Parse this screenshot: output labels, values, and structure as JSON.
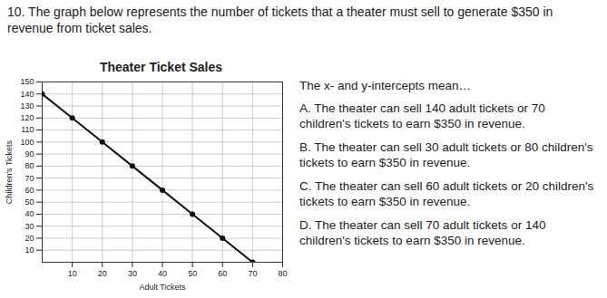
{
  "chart_data": {
    "type": "line",
    "title": "Theater Ticket Sales",
    "x_label": "Adult Tickets",
    "y_label": "Children's Tickets",
    "x": [
      0,
      10,
      20,
      30,
      40,
      50,
      60,
      70
    ],
    "values": [
      140,
      120,
      100,
      80,
      60,
      40,
      20,
      0
    ],
    "color": "#111111",
    "marker": "circle",
    "xlim": [
      0,
      80
    ],
    "xticks": [
      10,
      20,
      30,
      40,
      50,
      60,
      70,
      80
    ],
    "ylim": [
      0,
      150
    ],
    "yticks": [
      10,
      20,
      30,
      40,
      50,
      60,
      70,
      80,
      90,
      100,
      110,
      120,
      130,
      140,
      150
    ],
    "grid": true
  },
  "page": {
    "header": "10. The graph below represents the number of tickets that a theater must sell to generate $350 in revenue from ticket sales.",
    "prompt": "The x- and y-intercepts mean…",
    "choices": [
      {
        "letter": "A.",
        "text": "The theater can sell 140 adult tickets or 70 children's tickets to earn $350 in revenue."
      },
      {
        "letter": "B.",
        "text": "The theater can sell 30 adult tickets or 80 children's tickets to earn $350 in revenue."
      },
      {
        "letter": "C.",
        "text": "The theater can sell 60 adult tickets or 20 children's tickets to earn $350 in revenue."
      },
      {
        "letter": "D.",
        "text": "The theater can sell 70 adult tickets or 140 children's tickets to earn $350 in revenue."
      }
    ]
  }
}
